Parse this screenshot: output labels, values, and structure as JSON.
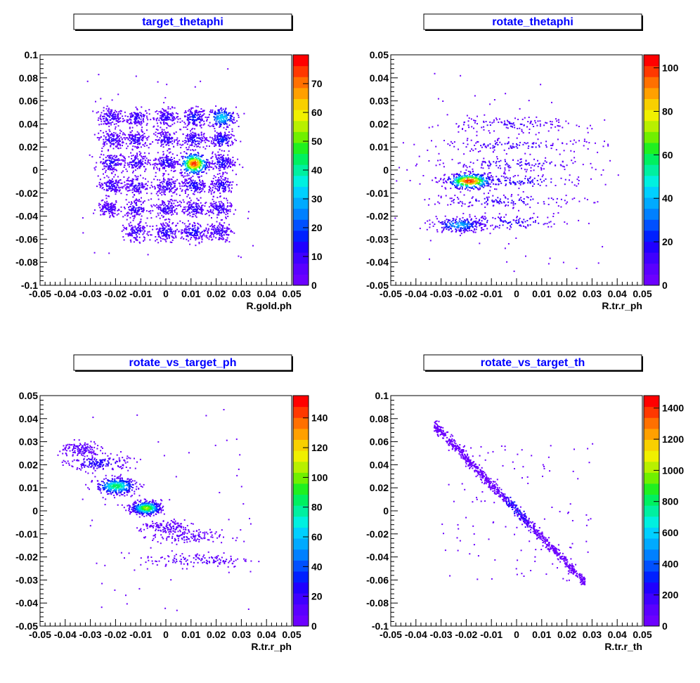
{
  "palette": [
    "#6c00ff",
    "#5a00ff",
    "#3f00ff",
    "#2000ff",
    "#0020ff",
    "#0050ff",
    "#0080ff",
    "#00aaff",
    "#00d0ff",
    "#00f0e0",
    "#00f0a0",
    "#00f060",
    "#20f020",
    "#70f000",
    "#b8f000",
    "#f0f000",
    "#f8d000",
    "#ffa000",
    "#ff7000",
    "#ff3800",
    "#ff0000"
  ],
  "chart_data": [
    {
      "type": "heatmap",
      "title": "target_thetaphi",
      "xlabel": "R.gold.ph",
      "ylabel": "",
      "xlim": [
        -0.05,
        0.05
      ],
      "ylim": [
        -0.1,
        0.1
      ],
      "zlim": [
        0,
        80
      ],
      "xticks": [
        "-0.05",
        "-0.04",
        "-0.03",
        "-0.02",
        "-0.01",
        "0",
        "0.01",
        "0.02",
        "0.03",
        "0.04",
        "0.05"
      ],
      "yticks": [
        "-0.1",
        "-0.08",
        "-0.06",
        "-0.04",
        "-0.02",
        "0",
        "0.02",
        "0.04",
        "0.06",
        "0.08",
        "0.1"
      ],
      "zticks": [
        "0",
        "10",
        "20",
        "30",
        "40",
        "50",
        "60",
        "70"
      ],
      "clusters": [
        {
          "x": -0.022,
          "y": 0.046,
          "sx": 0.0025,
          "sy": 0.004,
          "peak": 12
        },
        {
          "x": -0.012,
          "y": 0.046,
          "sx": 0.0025,
          "sy": 0.004,
          "peak": 12
        },
        {
          "x": 0.0,
          "y": 0.046,
          "sx": 0.0025,
          "sy": 0.004,
          "peak": 12
        },
        {
          "x": 0.011,
          "y": 0.046,
          "sx": 0.0025,
          "sy": 0.004,
          "peak": 18
        },
        {
          "x": 0.022,
          "y": 0.046,
          "sx": 0.0028,
          "sy": 0.0045,
          "peak": 35
        },
        {
          "x": -0.022,
          "y": 0.027,
          "sx": 0.0025,
          "sy": 0.004,
          "peak": 12
        },
        {
          "x": -0.012,
          "y": 0.027,
          "sx": 0.0025,
          "sy": 0.004,
          "peak": 12
        },
        {
          "x": 0.0,
          "y": 0.027,
          "sx": 0.0025,
          "sy": 0.004,
          "peak": 12
        },
        {
          "x": 0.011,
          "y": 0.027,
          "sx": 0.0025,
          "sy": 0.004,
          "peak": 14
        },
        {
          "x": 0.022,
          "y": 0.027,
          "sx": 0.0025,
          "sy": 0.004,
          "peak": 18
        },
        {
          "x": -0.022,
          "y": 0.007,
          "sx": 0.0025,
          "sy": 0.004,
          "peak": 14
        },
        {
          "x": -0.012,
          "y": 0.007,
          "sx": 0.0025,
          "sy": 0.004,
          "peak": 12
        },
        {
          "x": 0.0,
          "y": 0.007,
          "sx": 0.0025,
          "sy": 0.004,
          "peak": 14
        },
        {
          "x": 0.011,
          "y": 0.006,
          "sx": 0.0028,
          "sy": 0.0048,
          "peak": 78
        },
        {
          "x": 0.022,
          "y": 0.007,
          "sx": 0.0025,
          "sy": 0.004,
          "peak": 16
        },
        {
          "x": -0.022,
          "y": -0.013,
          "sx": 0.0025,
          "sy": 0.004,
          "peak": 12
        },
        {
          "x": -0.012,
          "y": -0.013,
          "sx": 0.0025,
          "sy": 0.004,
          "peak": 12
        },
        {
          "x": 0.0,
          "y": -0.013,
          "sx": 0.0025,
          "sy": 0.004,
          "peak": 12
        },
        {
          "x": 0.011,
          "y": -0.013,
          "sx": 0.0025,
          "sy": 0.004,
          "peak": 16
        },
        {
          "x": 0.022,
          "y": -0.013,
          "sx": 0.0025,
          "sy": 0.004,
          "peak": 14
        },
        {
          "x": -0.023,
          "y": -0.033,
          "sx": 0.0022,
          "sy": 0.0035,
          "peak": 10
        },
        {
          "x": -0.012,
          "y": -0.033,
          "sx": 0.0025,
          "sy": 0.004,
          "peak": 12
        },
        {
          "x": 0.0,
          "y": -0.033,
          "sx": 0.0025,
          "sy": 0.004,
          "peak": 12
        },
        {
          "x": 0.011,
          "y": -0.033,
          "sx": 0.0025,
          "sy": 0.004,
          "peak": 12
        },
        {
          "x": 0.021,
          "y": -0.033,
          "sx": 0.0025,
          "sy": 0.004,
          "peak": 12
        },
        {
          "x": -0.012,
          "y": -0.053,
          "sx": 0.0025,
          "sy": 0.004,
          "peak": 12
        },
        {
          "x": 0.0,
          "y": -0.053,
          "sx": 0.0025,
          "sy": 0.004,
          "peak": 14
        },
        {
          "x": 0.011,
          "y": -0.053,
          "sx": 0.0028,
          "sy": 0.004,
          "peak": 16
        },
        {
          "x": 0.021,
          "y": -0.053,
          "sx": 0.0025,
          "sy": 0.004,
          "peak": 12
        }
      ]
    },
    {
      "type": "heatmap",
      "title": "rotate_thetaphi",
      "xlabel": "R.tr.r_ph",
      "ylabel": "",
      "xlim": [
        -0.05,
        0.05
      ],
      "ylim": [
        -0.05,
        0.05
      ],
      "zlim": [
        0,
        106
      ],
      "xticks": [
        "-0.05",
        "-0.04",
        "-0.03",
        "-0.02",
        "-0.01",
        "0",
        "0.01",
        "0.02",
        "0.03",
        "0.04",
        "0.05"
      ],
      "yticks": [
        "-0.05",
        "-0.04",
        "-0.03",
        "-0.02",
        "-0.01",
        "0",
        "0.01",
        "0.02",
        "0.03",
        "0.04",
        "0.05"
      ],
      "zticks": [
        "0",
        "20",
        "40",
        "60",
        "80",
        "100"
      ],
      "clusters": [
        {
          "x": -0.004,
          "y": 0.02,
          "sx": 0.016,
          "sy": 0.0015,
          "peak": 12
        },
        {
          "x": -0.002,
          "y": 0.011,
          "sx": 0.018,
          "sy": 0.0015,
          "peak": 14
        },
        {
          "x": -0.001,
          "y": 0.003,
          "sx": 0.018,
          "sy": 0.0015,
          "peak": 14
        },
        {
          "x": -0.002,
          "y": -0.0045,
          "sx": 0.017,
          "sy": 0.0015,
          "peak": 18
        },
        {
          "x": -0.019,
          "y": -0.0045,
          "sx": 0.0045,
          "sy": 0.0017,
          "peak": 104
        },
        {
          "x": -0.004,
          "y": -0.013,
          "sx": 0.016,
          "sy": 0.0015,
          "peak": 16
        },
        {
          "x": -0.006,
          "y": -0.0225,
          "sx": 0.014,
          "sy": 0.0016,
          "peak": 18
        },
        {
          "x": -0.023,
          "y": -0.0235,
          "sx": 0.005,
          "sy": 0.0016,
          "peak": 40
        }
      ]
    },
    {
      "type": "heatmap",
      "title": "rotate_vs_target_ph",
      "xlabel": "R.tr.r_ph",
      "ylabel": "",
      "xlim": [
        -0.05,
        0.05
      ],
      "ylim": [
        -0.05,
        0.05
      ],
      "zlim": [
        0,
        155
      ],
      "xticks": [
        "-0.05",
        "-0.04",
        "-0.03",
        "-0.02",
        "-0.01",
        "0",
        "0.01",
        "0.02",
        "0.03",
        "0.04",
        "0.05"
      ],
      "yticks": [
        "-0.05",
        "-0.04",
        "-0.03",
        "-0.02",
        "-0.01",
        "0",
        "0.01",
        "0.02",
        "0.03",
        "0.04",
        "0.05"
      ],
      "zticks": [
        "0",
        "20",
        "40",
        "60",
        "80",
        "100",
        "120",
        "140"
      ],
      "clusters": [
        {
          "x": -0.034,
          "y": 0.027,
          "sx": 0.004,
          "sy": 0.0018,
          "peak": 14
        },
        {
          "x": -0.027,
          "y": 0.021,
          "sx": 0.006,
          "sy": 0.0018,
          "peak": 30
        },
        {
          "x": -0.02,
          "y": 0.011,
          "sx": 0.004,
          "sy": 0.0018,
          "peak": 90
        },
        {
          "x": -0.008,
          "y": 0.0015,
          "sx": 0.003,
          "sy": 0.0015,
          "peak": 110
        },
        {
          "x": 0.0,
          "y": -0.007,
          "sx": 0.005,
          "sy": 0.0015,
          "peak": 14
        },
        {
          "x": 0.008,
          "y": -0.011,
          "sx": 0.007,
          "sy": 0.0015,
          "peak": 12
        },
        {
          "x": 0.012,
          "y": -0.021,
          "sx": 0.011,
          "sy": 0.0016,
          "peak": 14
        }
      ]
    },
    {
      "type": "heatmap",
      "title": "rotate_vs_target_th",
      "xlabel": "R.tr.r_th",
      "ylabel": "",
      "xlim": [
        -0.05,
        0.05
      ],
      "ylim": [
        -0.1,
        0.1
      ],
      "zlim": [
        0,
        1480
      ],
      "xticks": [
        "-0.05",
        "-0.04",
        "-0.03",
        "-0.02",
        "-0.01",
        "0",
        "0.01",
        "0.02",
        "0.03",
        "0.04",
        "0.05"
      ],
      "yticks": [
        "-0.1",
        "-0.08",
        "-0.06",
        "-0.04",
        "-0.02",
        "0",
        "0.02",
        "0.04",
        "0.06",
        "0.08",
        "0.1"
      ],
      "zticks": [
        "0",
        "200",
        "400",
        "600",
        "800",
        "1000",
        "1200",
        "1400"
      ],
      "band": {
        "x_start": -0.033,
        "x_end": 0.027,
        "slope": -2.27,
        "intercept": 0.0,
        "peak": 400
      }
    }
  ]
}
